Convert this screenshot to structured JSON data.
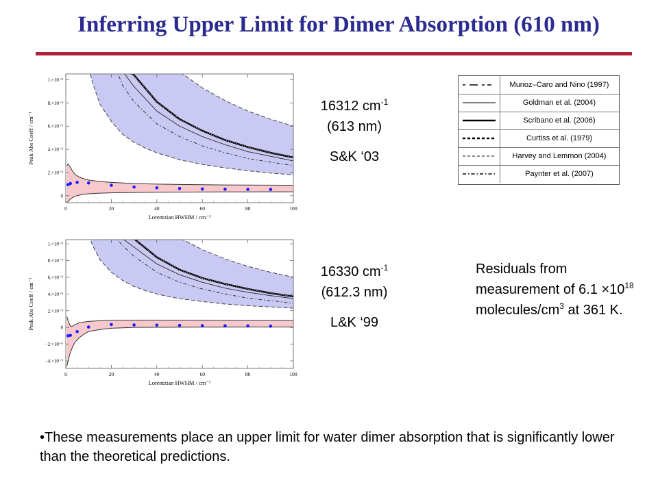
{
  "title": "Inferring Upper Limit for Dimer Absorption (610 nm)",
  "colors": {
    "title": "#2b2b8f",
    "rule": "#b0213b",
    "blue_band": "#c9c9f3",
    "pink_band": "#f7c8cc",
    "points": "#1a1aff"
  },
  "legend": {
    "items": [
      {
        "label": "Munoz–Caro and Nino (1997)",
        "style": "long-dash"
      },
      {
        "label": "Goldman et al. (2004)",
        "style": "thin-solid"
      },
      {
        "label": "Scribano et al. (2006)",
        "style": "thick-solid"
      },
      {
        "label": "Curtiss et al. (1979)",
        "style": "thick-dash"
      },
      {
        "label": "Harvey and Lemmon (2004)",
        "style": "gray-dash"
      },
      {
        "label": "Paynter et al. (2007)",
        "style": "dash-dot"
      }
    ]
  },
  "annotations": {
    "top": {
      "wavenumber": "16312 cm",
      "exp": "-1",
      "wavelength": "(613 nm)",
      "source": "S&K ‘03"
    },
    "bottom": {
      "wavenumber": "16330 cm",
      "exp": "-1",
      "wavelength": "(612.3 nm)",
      "source": "L&K ‘99"
    }
  },
  "residuals": {
    "line1": "Residuals from measurement of",
    "line2a": "6.1 ×10",
    "exp1": "18",
    "line2b": " molecules/cm",
    "exp2": "3",
    "line2c": " at 361 K."
  },
  "bullet": "These measurements place an upper limit for water dimer absorption that is significantly lower than the theoretical predictions.",
  "chart_data": [
    {
      "type": "line",
      "xlabel": "Lorentzian HWHM / cm⁻¹",
      "ylabel": "Peak Abs Coeff / cm⁻¹",
      "xlim": [
        0,
        100
      ],
      "ylim": [
        -6e-10,
        1.05e-08
      ],
      "xticks": [
        0,
        20,
        40,
        60,
        80,
        100
      ],
      "yticks": [
        {
          "v": 0,
          "label": "0"
        },
        {
          "v": 2e-09,
          "label": "2.×10⁻⁹"
        },
        {
          "v": 4e-09,
          "label": "4.×10⁻⁹"
        },
        {
          "v": 6e-09,
          "label": "6.×10⁻⁹"
        },
        {
          "v": 8e-09,
          "label": "8.×10⁻⁹"
        },
        {
          "v": 1e-08,
          "label": "1.×10⁻⁸"
        }
      ],
      "bands": [
        {
          "name": "theory-range",
          "x": [
            10,
            12,
            15,
            20,
            25,
            30,
            35,
            40,
            45,
            50,
            60,
            70,
            80,
            90,
            100
          ],
          "upper": [
            1.1e-08,
            1.1e-08,
            1.1e-08,
            1.1e-08,
            1.1e-08,
            1.1e-08,
            1.1e-08,
            1.1e-08,
            1.1e-08,
            1.07e-08,
            9.3e-09,
            8.2e-09,
            7.3e-09,
            6.6e-09,
            6e-09
          ],
          "lower": [
            1.1e-08,
            9.6e-09,
            7.9e-09,
            6.4e-09,
            5.3e-09,
            4.6e-09,
            4.1e-09,
            3.7e-09,
            3.4e-09,
            3.1e-09,
            2.7e-09,
            2.4e-09,
            2.15e-09,
            1.95e-09,
            1.8e-09
          ]
        },
        {
          "name": "measurement-range",
          "x": [
            0.5,
            1,
            2,
            3,
            4,
            6,
            8,
            10,
            15,
            20,
            30,
            40,
            50,
            60,
            70,
            80,
            90,
            100
          ],
          "upper": [
            2.6e-09,
            2.75e-09,
            2.45e-09,
            2.1e-09,
            1.85e-09,
            1.6e-09,
            1.45e-09,
            1.35e-09,
            1.22e-09,
            1.15e-09,
            1.05e-09,
            1e-09,
            9.7e-10,
            9.5e-10,
            9.3e-10,
            9.2e-10,
            9.1e-10,
            9e-10
          ],
          "lower": [
            -5.5e-10,
            -5e-10,
            -3e-10,
            -1.5e-10,
            -5e-11,
            5e-11,
            1.2e-10,
            1.7e-10,
            2.2e-10,
            2.5e-10,
            2.8e-10,
            3e-10,
            3.1e-10,
            3.2e-10,
            3.3e-10,
            3.3e-10,
            3.4e-10,
            3.4e-10
          ]
        }
      ],
      "series": [
        {
          "style": "thick-solid",
          "x": [
            20,
            25,
            30,
            40,
            50,
            60,
            70,
            80,
            90,
            100
          ],
          "y": [
            1.1e-08,
            1.1e-08,
            1.04e-08,
            8.1e-09,
            6.6e-09,
            5.6e-09,
            4.8e-09,
            4.2e-09,
            3.7e-09,
            3.3e-09
          ]
        },
        {
          "style": "thin-solid",
          "x": [
            24,
            30,
            40,
            50,
            60,
            70,
            80,
            90,
            100
          ],
          "y": [
            1.1e-08,
            9.4e-09,
            7.3e-09,
            6e-09,
            5.1e-09,
            4.4e-09,
            3.8e-09,
            3.4e-09,
            3e-09
          ]
        },
        {
          "style": "dash-dot",
          "x": [
            22,
            25,
            30,
            40,
            50,
            60,
            70,
            80,
            90,
            100
          ],
          "y": [
            1.1e-08,
            9.5e-09,
            8.1e-09,
            6.2e-09,
            5.1e-09,
            4.3e-09,
            3.7e-09,
            3.2e-09,
            2.9e-09,
            2.6e-09
          ]
        }
      ],
      "points": {
        "x": [
          1,
          2,
          5,
          10,
          20,
          30,
          40,
          50,
          60,
          70,
          80,
          90
        ],
        "y": [
          9.5e-10,
          1.05e-09,
          1.15e-09,
          1.1e-09,
          9e-10,
          7.5e-10,
          6.8e-10,
          6.2e-10,
          5.8e-10,
          5.6e-10,
          5.5e-10,
          5.4e-10
        ]
      }
    },
    {
      "type": "line",
      "xlabel": "Lorentzian HWHM / cm⁻¹",
      "ylabel": "Peak Abs Coeff / cm⁻¹",
      "xlim": [
        0,
        100
      ],
      "ylim": [
        -4.9e-09,
        1.05e-08
      ],
      "xticks": [
        0,
        20,
        40,
        60,
        80,
        100
      ],
      "yticks": [
        {
          "v": -4e-09,
          "label": "−4.×10⁻⁹"
        },
        {
          "v": -2e-09,
          "label": "−2.×10⁻⁹"
        },
        {
          "v": 0,
          "label": "0"
        },
        {
          "v": 2e-09,
          "label": "2.×10⁻⁹"
        },
        {
          "v": 4e-09,
          "label": "4.×10⁻⁹"
        },
        {
          "v": 6e-09,
          "label": "6.×10⁻⁹"
        },
        {
          "v": 8e-09,
          "label": "8.×10⁻⁹"
        },
        {
          "v": 1e-08,
          "label": "1.×10⁻⁸"
        }
      ],
      "bands": [
        {
          "name": "theory-range",
          "x": [
            10,
            12,
            15,
            20,
            25,
            30,
            35,
            40,
            45,
            50,
            60,
            70,
            80,
            90,
            100
          ],
          "upper": [
            1.1e-08,
            1.1e-08,
            1.1e-08,
            1.1e-08,
            1.1e-08,
            1.1e-08,
            1.1e-08,
            1.1e-08,
            1.1e-08,
            1.07e-08,
            9.3e-09,
            8.2e-09,
            7.3e-09,
            6.6e-09,
            6e-09
          ],
          "lower": [
            1.1e-08,
            9.7e-09,
            8.1e-09,
            6.6e-09,
            5.6e-09,
            4.9e-09,
            4.4e-09,
            4e-09,
            3.7e-09,
            3.45e-09,
            3.1e-09,
            2.8e-09,
            2.6e-09,
            2.45e-09,
            2.3e-09
          ]
        },
        {
          "name": "measurement-range",
          "x": [
            0.5,
            1,
            2,
            3,
            4,
            6,
            8,
            10,
            15,
            20,
            30,
            40,
            50,
            60,
            70,
            80,
            90,
            100
          ],
          "upper": [
            1.3e-09,
            8e-10,
            1.5e-10,
            1.5e-10,
            3.5e-10,
            5.5e-10,
            6.5e-10,
            7.2e-10,
            8e-10,
            8.5e-10,
            8.8e-10,
            8.8e-10,
            8.6e-10,
            8.5e-10,
            8.4e-10,
            8.3e-10,
            8.2e-10,
            8.2e-10
          ],
          "lower": [
            -4.6e-09,
            -4e-09,
            -3e-09,
            -2.3e-09,
            -1.8e-09,
            -1.2e-09,
            -8e-10,
            -5e-10,
            -2.5e-10,
            -1e-10,
            0.0,
            2e-11,
            3e-11,
            4e-11,
            4e-11,
            5e-11,
            5e-11,
            5e-11
          ]
        }
      ],
      "series": [
        {
          "style": "thick-solid",
          "x": [
            20,
            25,
            30,
            40,
            50,
            60,
            70,
            80,
            90,
            100
          ],
          "y": [
            1.1e-08,
            1.1e-08,
            1.06e-08,
            8.4e-09,
            6.9e-09,
            5.9e-09,
            5.2e-09,
            4.6e-09,
            4.1e-09,
            3.7e-09
          ]
        },
        {
          "style": "thin-solid",
          "x": [
            23,
            30,
            40,
            50,
            60,
            70,
            80,
            90,
            100
          ],
          "y": [
            1.1e-08,
            9.6e-09,
            7.6e-09,
            6.3e-09,
            5.4e-09,
            4.7e-09,
            4.2e-09,
            3.8e-09,
            3.45e-09
          ]
        },
        {
          "style": "dash-dot",
          "x": [
            21,
            25,
            30,
            40,
            50,
            60,
            70,
            80,
            90,
            100
          ],
          "y": [
            1.1e-08,
            9.8e-09,
            8.5e-09,
            6.6e-09,
            5.4e-09,
            4.6e-09,
            4e-09,
            3.5e-09,
            3.2e-09,
            2.9e-09
          ]
        }
      ],
      "points": {
        "x": [
          1,
          2,
          5,
          10,
          20,
          30,
          40,
          50,
          60,
          70,
          80,
          90
        ],
        "y": [
          -1e-09,
          -9.5e-10,
          -5e-10,
          5e-11,
          3.5e-10,
          3e-10,
          2.8e-10,
          2.5e-10,
          2.2e-10,
          2e-10,
          1.8e-10,
          1.5e-10
        ]
      }
    }
  ]
}
